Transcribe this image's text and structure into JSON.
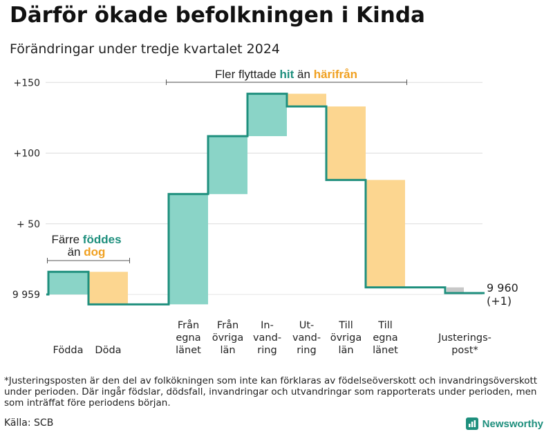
{
  "header": {
    "title": "Därför ökade befolkningen i Kinda",
    "subtitle": "Förändringar under tredje kvartalet 2024"
  },
  "colors": {
    "increase": "#8ad4c7",
    "decrease": "#fcd690",
    "adjust": "#c8c8c8",
    "line": "#1e8f7d",
    "teal_text": "#1e8f7d",
    "orange_text": "#f0a020"
  },
  "chart_data": {
    "type": "waterfall",
    "title": "Därför ökade befolkningen i Kinda",
    "subtitle": "Förändringar under tredje kvartalet 2024",
    "ylim": [
      -5,
      156
    ],
    "y_ticks": [
      {
        "value": 0,
        "label": "9 959"
      },
      {
        "value": 50,
        "label": "+ 50"
      },
      {
        "value": 100,
        "label": "+100"
      },
      {
        "value": 150,
        "label": "+150"
      }
    ],
    "start": {
      "value": 9959,
      "relative": 0
    },
    "steps": [
      {
        "label": "Födda",
        "kind": "increase",
        "from": 0,
        "to": 16
      },
      {
        "label": "Döda",
        "kind": "decrease",
        "from": 16,
        "to": -7
      },
      {
        "label": "Från egna länet",
        "kind": "increase",
        "from": -7,
        "to": 71
      },
      {
        "label": "Från övriga län",
        "kind": "increase",
        "from": 71,
        "to": 112
      },
      {
        "label": "In- vand- ring",
        "kind": "increase",
        "from": 112,
        "to": 142
      },
      {
        "label": "Ut- vand- ring",
        "kind": "decrease",
        "from": 142,
        "to": 133
      },
      {
        "label": "Till övriga län",
        "kind": "decrease",
        "from": 133,
        "to": 81
      },
      {
        "label": "Till egna länet",
        "kind": "decrease",
        "from": 81,
        "to": 5
      },
      {
        "label": "Justerings- post*",
        "kind": "adjust",
        "from": 5,
        "to": 1
      }
    ],
    "category_labels": [
      [
        "Födda"
      ],
      [
        "Döda"
      ],
      [
        "Från",
        "egna",
        "länet"
      ],
      [
        "Från",
        "övriga",
        "län"
      ],
      [
        "In-",
        "vand-",
        "ring"
      ],
      [
        "Ut-",
        "vand-",
        "ring"
      ],
      [
        "Till",
        "övriga",
        "län"
      ],
      [
        "Till",
        "egna",
        "länet"
      ],
      [
        "Justerings-",
        "post*"
      ]
    ],
    "end": {
      "value_label": "9 960",
      "change_label": "(+1)",
      "relative": 1
    },
    "annotations": [
      {
        "id": "births",
        "parts": [
          {
            "line": 1,
            "text": "Färre ",
            "style": "normal"
          },
          {
            "line": 1,
            "text": "föddes",
            "style": "teal"
          },
          {
            "line": 2,
            "text": "än ",
            "style": "normal"
          },
          {
            "line": 2,
            "text": "dog",
            "style": "orange"
          }
        ]
      },
      {
        "id": "migration",
        "parts": [
          {
            "line": 1,
            "text": "Fler flyttade ",
            "style": "normal"
          },
          {
            "line": 1,
            "text": "hit",
            "style": "teal"
          },
          {
            "line": 1,
            "text": " än ",
            "style": "normal"
          },
          {
            "line": 1,
            "text": "härifrån",
            "style": "orange"
          }
        ]
      }
    ]
  },
  "footer": {
    "footnote": "*Justeringsposten är den del av folkökningen som inte kan förklaras av födelseöverskott och invandringsöverskott under perioden. Där ingår födslar, dödsfall, invandringar och utvandringar som rapporterats under perioden, men som inträffat före periodens början.",
    "source": "Källa: SCB",
    "brand": "Newsworthy",
    "brand_icon": "newsworthy-logo-icon"
  }
}
